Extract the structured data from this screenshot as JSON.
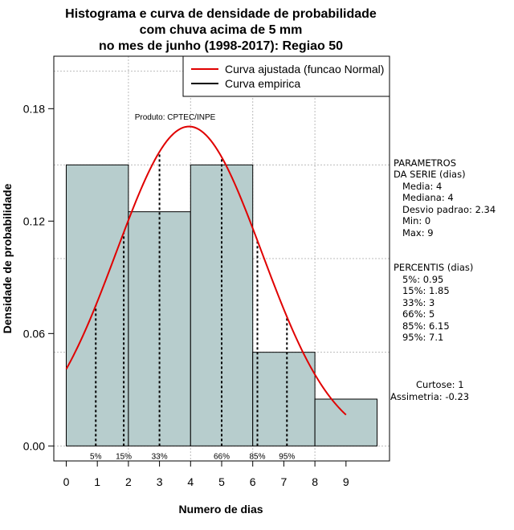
{
  "chart_data": {
    "type": "bar",
    "title_lines": [
      "Histograma e curva de densidade de probabilidade",
      "com chuva acima de 5 mm",
      "no mes de junho (1998-2017): Regiao 50"
    ],
    "xlabel": "Numero de dias",
    "ylabel": "Densidade de probabilidade",
    "xlim": [
      -0.4,
      10.4
    ],
    "ylim": [
      -0.008,
      0.208
    ],
    "x_ticks": [
      "0",
      "1",
      "2",
      "3",
      "4",
      "5",
      "6",
      "7",
      "8",
      "9"
    ],
    "y_ticks": [
      "0.00",
      "0.06",
      "0.12",
      "0.18"
    ],
    "bins": [
      {
        "x0": 0,
        "x1": 2,
        "density": 0.15
      },
      {
        "x0": 2,
        "x1": 4,
        "density": 0.125
      },
      {
        "x0": 4,
        "x1": 6,
        "density": 0.15
      },
      {
        "x0": 6,
        "x1": 8,
        "density": 0.05
      },
      {
        "x0": 8,
        "x1": 10,
        "density": 0.025
      }
    ],
    "bar_color": "#b7cdcd",
    "curve_color": "#e00000",
    "normal_fit": {
      "mean": 3.95,
      "sd": 2.34,
      "x_from": 0,
      "x_to": 9
    },
    "percentiles": [
      {
        "label": "5%",
        "value": 0.95
      },
      {
        "label": "15%",
        "value": 1.85
      },
      {
        "label": "33%",
        "value": 3
      },
      {
        "label": "66%",
        "value": 5
      },
      {
        "label": "85%",
        "value": 6.15
      },
      {
        "label": "95%",
        "value": 7.1
      }
    ],
    "legend": {
      "position": "top-right",
      "items": [
        {
          "label": "Curva ajustada (funcao Normal)",
          "color": "#e00000"
        },
        {
          "label": "Curva empirica",
          "color": "#000000"
        }
      ]
    },
    "product_label": "Produto: CPTEC/INPE",
    "grid": true
  },
  "side_panel": {
    "parametros": [
      "PARAMETROS",
      "DA SERIE (dias)",
      "   Media: 4",
      "   Mediana: 4",
      "   Desvio padrao: 2.34",
      "   Min: 0",
      "   Max: 9"
    ],
    "percentis": [
      "PERCENTIS (dias)",
      "   5%: 0.95",
      "   15%: 1.85",
      "   33%: 3",
      "   66%: 5",
      "   85%: 6.15",
      "   95%: 7.1"
    ],
    "curtose": "Curtose: 1",
    "assimetria": "Assimetria: -0.23"
  }
}
